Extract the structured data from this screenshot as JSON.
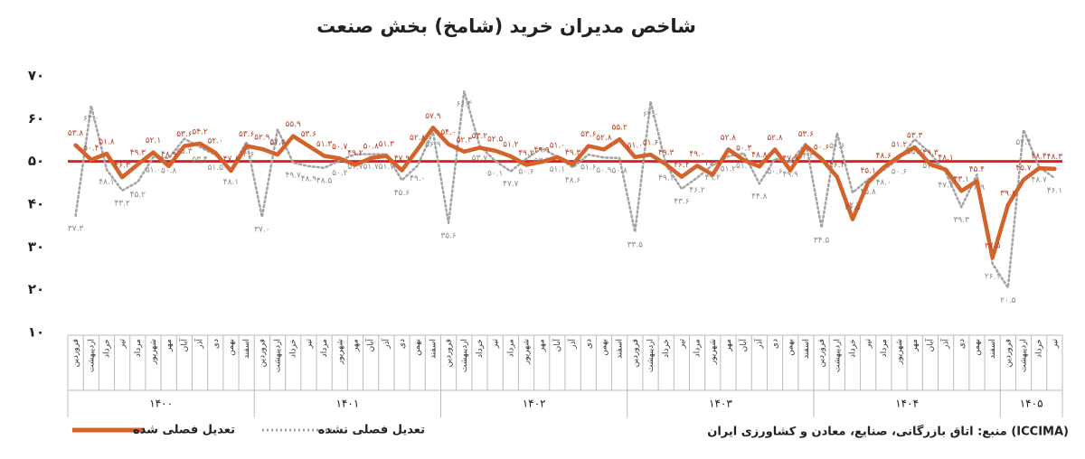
{
  "chart_data": {
    "type": "line",
    "title": "شاخص مدیران خرید (شامخ) بخش صنعت",
    "categories": [
      "فروردین",
      "اردیبهشت",
      "خرداد",
      "تیر",
      "مرداد",
      "شهریور",
      "مهر",
      "آبان",
      "آذر",
      "دی",
      "بهمن",
      "اسفند",
      "فروردین",
      "اردیبهشت",
      "خرداد",
      "تیر",
      "مرداد",
      "شهریور",
      "مهر",
      "آبان",
      "آذر",
      "دی",
      "بهمن",
      "اسفند",
      "فروردین",
      "اردیبهشت",
      "خرداد",
      "تیر",
      "مرداد",
      "شهریور",
      "مهر",
      "آبان",
      "آذر",
      "دی",
      "بهمن",
      "اسفند",
      "فروردین",
      "اردیبهشت",
      "خرداد",
      "تیر",
      "مرداد",
      "شهریور",
      "مهر",
      "آبان",
      "آذر",
      "دی",
      "بهمن",
      "اسفند",
      "فروردین",
      "اردیبهشت",
      "خرداد",
      "تیر",
      "مرداد",
      "شهریور",
      "مهر",
      "آبان",
      "آذر",
      "دی",
      "بهمن",
      "اسفند",
      "فروردین",
      "اردیبهشت",
      "خرداد",
      "تیر"
    ],
    "year_labels": [
      "۱۴۰۰",
      "۱۴۰۱",
      "۱۴۰۲",
      "۱۴۰۳",
      "۱۴۰۴",
      "۱۴۰۵"
    ],
    "series": [
      {
        "name": "تعدیل فصلی شده",
        "color": "#d4622b",
        "style": "solid",
        "values": [
          53.8,
          50.4,
          51.8,
          46.3,
          49.3,
          52.1,
          48.9,
          53.6,
          54.2,
          52.0,
          47.8,
          53.6,
          52.9,
          51.6,
          55.9,
          53.6,
          51.3,
          50.7,
          49.2,
          50.8,
          51.3,
          47.9,
          52.8,
          57.9,
          54.0,
          52.3,
          53.2,
          52.5,
          51.2,
          49.2,
          49.9,
          51.0,
          49.3,
          53.6,
          52.8,
          55.2,
          51.0,
          51.6,
          49.3,
          46.4,
          49.0,
          46.9,
          52.8,
          50.3,
          48.8,
          52.8,
          47.9,
          53.6,
          50.6,
          46.4,
          36.5,
          45.1,
          48.6,
          51.2,
          53.3,
          49.3,
          48.1,
          43.1,
          45.4,
          27.5,
          39.8,
          45.7,
          48.4,
          48.3
        ],
        "value_labels": [
          "۵۳.۸",
          "۵۰.۴",
          "۵۱.۸",
          "۴۶.۳",
          "۴۹.۳",
          "۵۲.۱",
          "۴۸.۹",
          "۵۳.۶",
          "۵۴.۲",
          "۵۲.۰",
          "۴۷.۸",
          "۵۳.۶",
          "۵۲.۹",
          "۵۱.۶",
          "۵۵.۹",
          "۵۳.۶",
          "۵۱.۳",
          "۵۰.۷",
          "۴۹.۲",
          "۵۰.۸",
          "۵۱.۳",
          "۴۷.۹",
          "۵۲.۸",
          "۵۷.۹",
          "۵۴.۰",
          "۵۲.۳",
          "۵۳.۲",
          "۵۲.۵",
          "۵۱.۲",
          "۴۹.۲",
          "۴۹.۹",
          "۵۱.۰",
          "۴۹.۳",
          "۵۳.۶",
          "۵۲.۸",
          "۵۵.۲",
          "۵۱.۰",
          "۵۱.۶",
          "۴۹.۳",
          "۴۶.۴",
          "۴۹.۰",
          "۴۶.۹",
          "۵۲.۸",
          "۵۰.۳",
          "۴۸.۸",
          "۵۲.۸",
          "۴۷.۹",
          "۵۳.۶",
          "۵۰.۶",
          "۴۶.۴",
          "۳۶.۵",
          "۴۵.۱",
          "۴۸.۶",
          "۵۱.۲",
          "۵۳.۳",
          "۴۹.۳",
          "۴۸.۱",
          "۴۳.۱",
          "۴۵.۴",
          "۲۷.۵",
          "۳۹.۸",
          "۴۵.۷",
          "۴۸.۴",
          "۴۸.۳"
        ]
      },
      {
        "name": "تعدیل فصلی نشده",
        "color": "#a3a3a3",
        "style": "dotted",
        "values": [
          37.3,
          63.0,
          48.1,
          43.2,
          45.2,
          51.0,
          50.8,
          55.3,
          53.4,
          51.5,
          48.1,
          54.6,
          37.0,
          57.5,
          49.7,
          48.9,
          48.5,
          50.2,
          51.7,
          51.7,
          51.7,
          45.6,
          49.0,
          56.9,
          35.6,
          66.4,
          53.7,
          50.1,
          47.7,
          50.6,
          53.1,
          51.1,
          48.6,
          51.6,
          50.9,
          50.8,
          33.5,
          64.0,
          49.1,
          43.6,
          46.2,
          49.2,
          51.2,
          51.9,
          44.8,
          50.6,
          49.9,
          54.3,
          34.5,
          56.6,
          42.7,
          45.8,
          48.0,
          50.6,
          55.2,
          51.9,
          47.4,
          39.3,
          46.9,
          26.1,
          20.5,
          57.4,
          48.7,
          46.1
        ],
        "value_labels": [
          "۳۷.۳",
          "۶۳.۰",
          "۴۸.۱",
          "۴۳.۲",
          "۴۵.۲",
          "۵۱.۰",
          "۵۰.۸",
          "۵۵.۳",
          "۵۳.۴",
          "۵۱.۵",
          "۴۸.۱",
          "۵۴.۶",
          "۳۷.۰",
          "۵۷.۵",
          "۴۹.۷",
          "۴۸.۹",
          "۴۸.۵",
          "۵۰.۲",
          "۵۱.۷",
          "۵۱.۷",
          "۵۱.۷",
          "۴۵.۶",
          "۴۹.۰",
          "۵۶.۹",
          "۳۵.۶",
          "۶۶.۴",
          "۵۳.۷",
          "۵۰.۱",
          "۴۷.۷",
          "۵۰.۶",
          "۵۳.۱",
          "۵۱.۱",
          "۴۸.۶",
          "۵۱.۶",
          "۵۰.۹",
          "۵۰.۸",
          "۳۳.۵",
          "۶۴.۰",
          "۴۹.۱",
          "۴۳.۶",
          "۴۶.۲",
          "۴۹.۲",
          "۵۱.۲",
          "۵۱.۹",
          "۴۴.۸",
          "۵۰.۶",
          "۴۹.۹",
          "۵۴.۳",
          "۳۴.۵",
          "۵۶.۶",
          "۴۲.۷",
          "۴۵.۸",
          "۴۸.۰",
          "۵۰.۶",
          "۵۵.۲",
          "۵۱.۹",
          "۴۷.۴",
          "۳۹.۳",
          "۴۶.۹",
          "۲۶.۱",
          "۲۰.۵",
          "۵۷.۴",
          "۴۸.۷",
          "۴۶.۱"
        ]
      }
    ],
    "reference_line": {
      "value": 50,
      "color": "#e3211c"
    },
    "ylim": [
      10,
      70
    ],
    "yticks": [
      {
        "value": 10,
        "label": "۱۰"
      },
      {
        "value": 20,
        "label": "۲۰"
      },
      {
        "value": 30,
        "label": "۳۰"
      },
      {
        "value": 40,
        "label": "۴۰"
      },
      {
        "value": 50,
        "label": "۵۰"
      },
      {
        "value": 60,
        "label": "۶۰"
      },
      {
        "value": 70,
        "label": "۷۰"
      }
    ],
    "grid": false,
    "source": "منبع: اتاق بازرگانی، صنایع، معادن و کشاورزی ایران (ICCIMA)"
  }
}
